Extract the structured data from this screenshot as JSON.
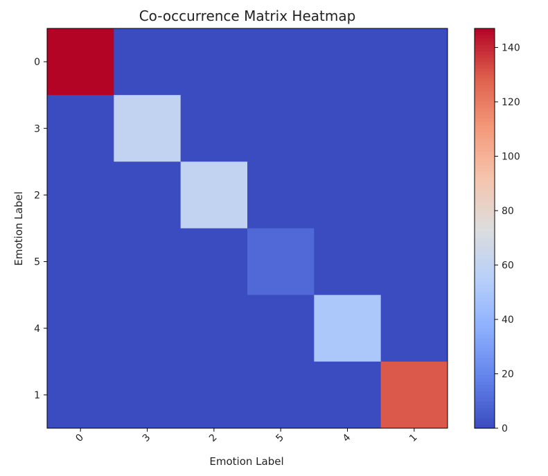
{
  "chart_data": {
    "type": "heatmap",
    "title": "Co-occurrence Matrix Heatmap",
    "xlabel": "Emotion Label",
    "ylabel": "Emotion Label",
    "x_categories": [
      "0",
      "3",
      "2",
      "5",
      "4",
      "1"
    ],
    "y_categories": [
      "0",
      "3",
      "2",
      "5",
      "4",
      "1"
    ],
    "values": [
      [
        147,
        0,
        0,
        0,
        0,
        0
      ],
      [
        0,
        60,
        0,
        0,
        0,
        0
      ],
      [
        0,
        0,
        60,
        0,
        0,
        0
      ],
      [
        0,
        0,
        0,
        10,
        0,
        0
      ],
      [
        0,
        0,
        0,
        0,
        50,
        0
      ],
      [
        0,
        0,
        0,
        0,
        0,
        130
      ]
    ],
    "colormap": "coolwarm",
    "vmin": 0,
    "vmax": 147,
    "colorbar_ticks": [
      0,
      20,
      40,
      60,
      80,
      100,
      120,
      140
    ],
    "colorbar_tick_labels": [
      "0",
      "20",
      "40",
      "60",
      "80",
      "100",
      "120",
      "140"
    ],
    "x_tick_rotation_deg": 45
  }
}
